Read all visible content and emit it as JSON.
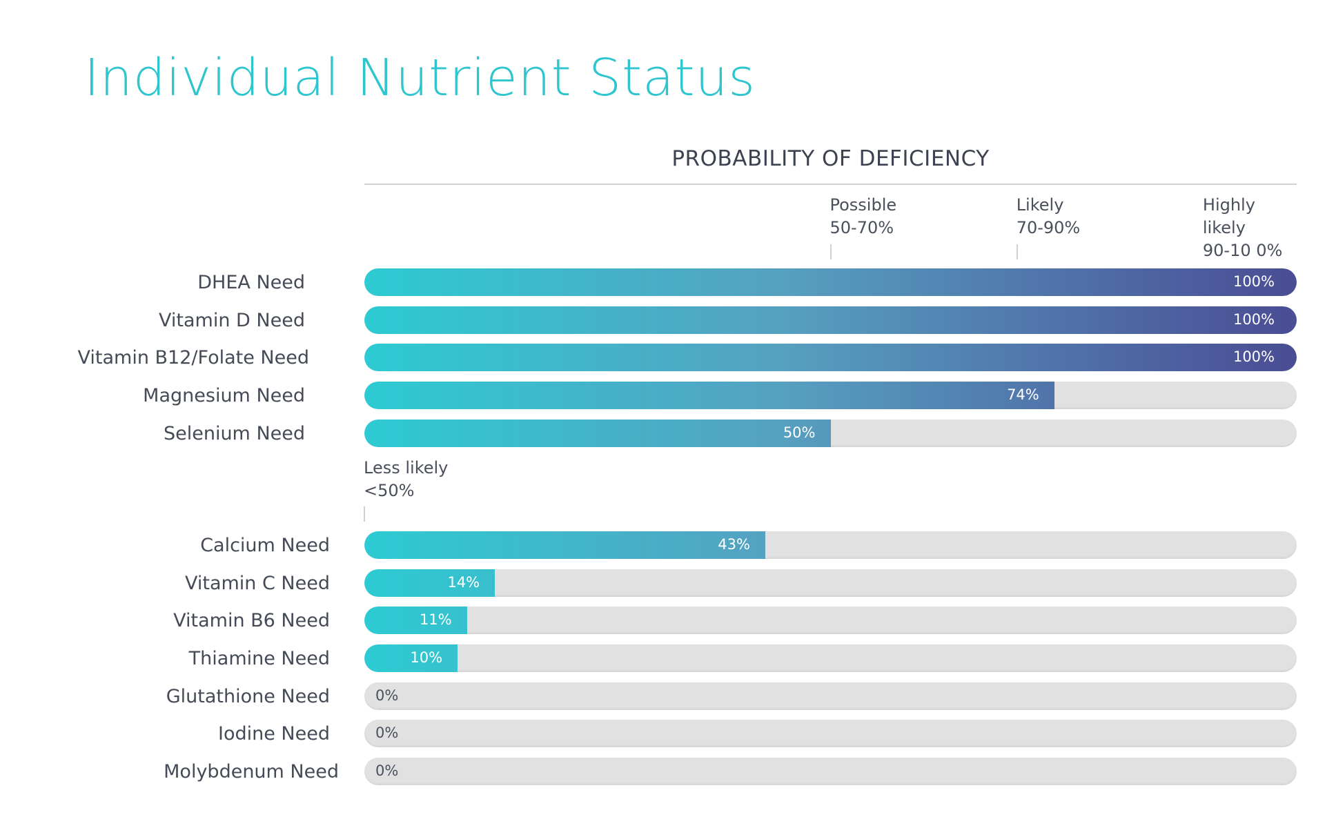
{
  "chart_data": {
    "type": "bar",
    "orientation": "horizontal",
    "title": "Individual Nutrient Status",
    "axis_title": "PROBABILITY OF DEFICIENCY",
    "xlim": [
      0,
      100
    ],
    "tiers": [
      {
        "label": "Less likely\n<50%",
        "at": 0
      },
      {
        "label": "Possible\n50-70%",
        "at": 50
      },
      {
        "label": "Likely\n70-90%",
        "at": 70
      },
      {
        "label": "Highly\nlikely\n90-10 0%",
        "at": 90
      }
    ],
    "categories": [
      "DHEA Need",
      "Vitamin D Need",
      "Vitamin B12/Folate Need",
      "Magnesium Need",
      "Selenium Need",
      "Calcium Need",
      "Vitamin C Need",
      "Vitamin B6 Need",
      "Thiamine Need",
      "Glutathione Need",
      "Iodine Need",
      "Molybdenum Need"
    ],
    "values": [
      100,
      100,
      100,
      74,
      50,
      43,
      14,
      11,
      10,
      0,
      0,
      0
    ],
    "value_labels": [
      "100%",
      "100%",
      "100%",
      "74%",
      "50%",
      "43%",
      "14%",
      "11%",
      "10%",
      "0%",
      "0%",
      "0%"
    ],
    "colors": {
      "gradient_start": "#2dcbd3",
      "gradient_end": "#4a4d93",
      "track": "#e1e1e1",
      "title": "#2ec5cf"
    }
  }
}
